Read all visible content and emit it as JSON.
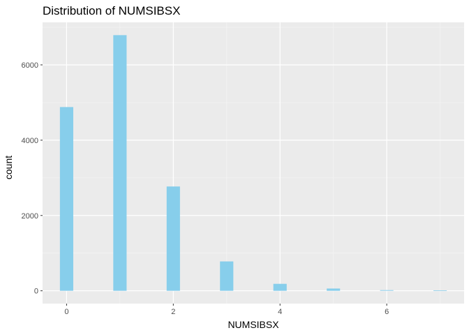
{
  "chart_data": {
    "type": "bar",
    "title": "Distribution of NUMSIBSX",
    "xlabel": "NUMSIBSX",
    "ylabel": "count",
    "x": [
      0,
      1,
      2,
      3,
      4,
      5,
      6,
      7
    ],
    "values": [
      4880,
      6790,
      2770,
      780,
      185,
      60,
      18,
      12
    ],
    "xlim": [
      -0.45,
      7.45
    ],
    "ylim": [
      -340,
      7130
    ],
    "xticks": [
      0,
      2,
      4,
      6
    ],
    "yticks": [
      0,
      2000,
      4000,
      6000
    ],
    "grid": true,
    "colors": {
      "bar": "#87CEEB",
      "panel": "#EBEBEB",
      "grid_major": "#FFFFFF",
      "grid_minor": "#F5F5F5",
      "tick_text": "#4D4D4D"
    }
  }
}
